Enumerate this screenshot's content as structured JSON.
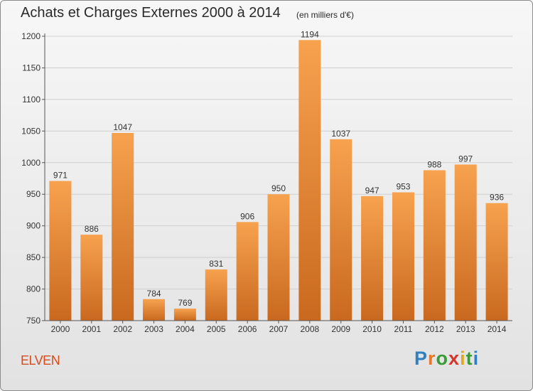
{
  "header": {
    "title": "Achats et Charges Externes 2000 à 2014",
    "unit": "(en milliers d'€)"
  },
  "footer": {
    "commune": "ELVEN",
    "brand": "Proxiti",
    "brand_letters": [
      {
        "char": "P",
        "color": "#2f7fc1"
      },
      {
        "char": "r",
        "color": "#e8772a"
      },
      {
        "char": "o",
        "color": "#3a9a35"
      },
      {
        "char": "x",
        "color": "#d6342c"
      },
      {
        "char": "i",
        "color": "#e0a81c"
      },
      {
        "char": "t",
        "color": "#3a9a35"
      },
      {
        "char": "i",
        "color": "#2f7fc1"
      }
    ]
  },
  "colors": {
    "bar_light": "#f7a24f",
    "bar_dark": "#c9691f",
    "grid": "#d0d0d0",
    "axis": "#555555",
    "commune": "#d84a1b"
  },
  "chart_data": {
    "type": "bar",
    "title": "Achats et Charges Externes 2000 à 2014",
    "subtitle": "(en milliers d'€)",
    "xlabel": "",
    "ylabel": "",
    "ylim": [
      750,
      1200
    ],
    "yticks": [
      750,
      800,
      850,
      900,
      950,
      1000,
      1050,
      1100,
      1150,
      1200
    ],
    "grid": true,
    "categories": [
      "2000",
      "2001",
      "2002",
      "2003",
      "2004",
      "2005",
      "2006",
      "2007",
      "2008",
      "2009",
      "2010",
      "2011",
      "2012",
      "2013",
      "2014"
    ],
    "values": [
      971,
      886,
      1047,
      784,
      769,
      831,
      906,
      950,
      1194,
      1037,
      947,
      953,
      988,
      997,
      936
    ]
  }
}
